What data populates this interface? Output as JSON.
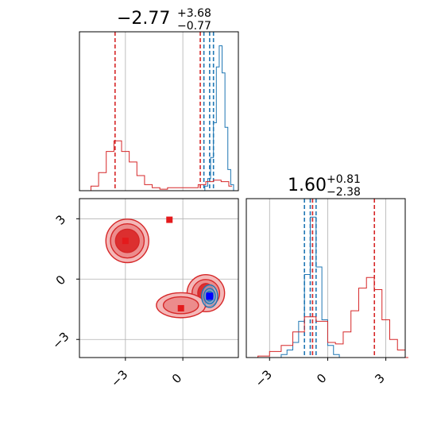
{
  "chart_data": [
    {
      "panel": "top-left",
      "type": "histogram",
      "parameter_index": 0,
      "title": {
        "main": "−2.77",
        "sup": "+3.68",
        "sub": "−0.77"
      },
      "xlim": [
        -5.4,
        2.9
      ],
      "grid": true,
      "series": [
        {
          "color": "#1f77b4",
          "bins": [
            [
              1.0,
              0.0
            ],
            [
              1.15,
              0.03
            ],
            [
              1.3,
              0.08
            ],
            [
              1.45,
              0.22
            ],
            [
              1.6,
              0.45
            ],
            [
              1.75,
              0.82
            ],
            [
              1.9,
              0.96
            ],
            [
              2.05,
              0.78
            ],
            [
              2.2,
              0.42
            ],
            [
              2.35,
              0.14
            ],
            [
              2.5,
              0.04
            ],
            [
              2.65,
              0.0
            ]
          ],
          "quantiles": [
            1.1,
            1.4,
            1.6
          ]
        },
        {
          "color": "#d62728",
          "bins": [
            [
              -5.2,
              0.0
            ],
            [
              -4.8,
              0.03
            ],
            [
              -4.4,
              0.12
            ],
            [
              -4.0,
              0.26
            ],
            [
              -3.6,
              0.33
            ],
            [
              -3.2,
              0.26
            ],
            [
              -2.8,
              0.19
            ],
            [
              -2.4,
              0.1
            ],
            [
              -2.0,
              0.04
            ],
            [
              -1.6,
              0.02
            ],
            [
              -1.2,
              0.01
            ],
            [
              -0.8,
              0.02
            ],
            [
              -0.4,
              0.02
            ],
            [
              0.0,
              0.02
            ],
            [
              0.4,
              0.02
            ],
            [
              0.8,
              0.04
            ],
            [
              1.2,
              0.06
            ],
            [
              1.6,
              0.07
            ],
            [
              2.0,
              0.06
            ],
            [
              2.4,
              0.03
            ]
          ],
          "quantiles": [
            -3.54,
            0.91
          ]
        }
      ]
    },
    {
      "panel": "bottom-right",
      "type": "histogram",
      "parameter_index": 1,
      "title": {
        "main": "1.60",
        "sup": "+0.81",
        "sub": "−2.38"
      },
      "xlim": [
        -4.2,
        4.0
      ],
      "xticks": [
        "−3",
        "0",
        "3"
      ],
      "grid": true,
      "series": [
        {
          "color": "#1f77b4",
          "bins": [
            [
              -2.7,
              0.0
            ],
            [
              -2.4,
              0.02
            ],
            [
              -2.1,
              0.05
            ],
            [
              -1.8,
              0.1
            ],
            [
              -1.5,
              0.24
            ],
            [
              -1.2,
              0.55
            ],
            [
              -0.9,
              0.93
            ],
            [
              -0.6,
              0.6
            ],
            [
              -0.3,
              0.25
            ],
            [
              0.0,
              0.08
            ],
            [
              0.3,
              0.02
            ],
            [
              0.6,
              0.0
            ]
          ],
          "quantiles": [
            -1.2,
            -0.9,
            -0.6
          ]
        },
        {
          "color": "#d62728",
          "bins": [
            [
              -4.2,
              0.0
            ],
            [
              -3.6,
              0.01
            ],
            [
              -3.0,
              0.04
            ],
            [
              -2.4,
              0.08
            ],
            [
              -1.8,
              0.17
            ],
            [
              -1.2,
              0.27
            ],
            [
              -0.6,
              0.24
            ],
            [
              0.0,
              0.1
            ],
            [
              0.4,
              0.09
            ],
            [
              0.8,
              0.17
            ],
            [
              1.2,
              0.31
            ],
            [
              1.6,
              0.46
            ],
            [
              2.0,
              0.53
            ],
            [
              2.4,
              0.45
            ],
            [
              2.8,
              0.25
            ],
            [
              3.2,
              0.12
            ],
            [
              3.6,
              0.05
            ],
            [
              4.0,
              0.0
            ]
          ],
          "quantiles": [
            -0.78,
            2.41
          ]
        }
      ]
    },
    {
      "panel": "bottom-left",
      "type": "contour",
      "xlim": [
        -5.4,
        2.9
      ],
      "ylim": [
        -3.9,
        4.0
      ],
      "xticks": [
        "−3",
        "0"
      ],
      "yticks": [
        "3",
        "0",
        "−3"
      ],
      "grid": true,
      "series": [
        {
          "color": "#d62728",
          "modes": [
            {
              "center": [
                -2.9,
                1.9
              ],
              "radii": [
                [
                  1.12,
                  1.08
                ],
                [
                  0.88,
                  0.85
                ],
                [
                  0.62,
                  0.58
                ]
              ]
            },
            {
              "center": [
                1.2,
                -0.7
              ],
              "radii": [
                [
                  0.98,
                  0.92
                ],
                [
                  0.72,
                  0.68
                ],
                [
                  0.42,
                  0.48
                ]
              ]
            },
            {
              "center": [
                -0.1,
                -1.3
              ],
              "radii": [
                [
                  1.28,
                  0.62
                ],
                [
                  0.92,
                  0.42
                ]
              ]
            }
          ],
          "markers": [
            [
              -3.0,
              1.9
            ],
            [
              -0.7,
              2.95
            ],
            [
              -0.1,
              -1.45
            ],
            [
              1.4,
              -0.85
            ]
          ]
        },
        {
          "color": "#1f77b4",
          "modes": [
            {
              "center": [
                1.4,
                -0.85
              ],
              "radii": [
                [
                  0.42,
                  0.56
                ],
                [
                  0.3,
                  0.38
                ],
                [
                  0.18,
                  0.24
                ]
              ]
            }
          ],
          "markers": [
            [
              1.4,
              -0.85
            ]
          ]
        }
      ]
    }
  ]
}
